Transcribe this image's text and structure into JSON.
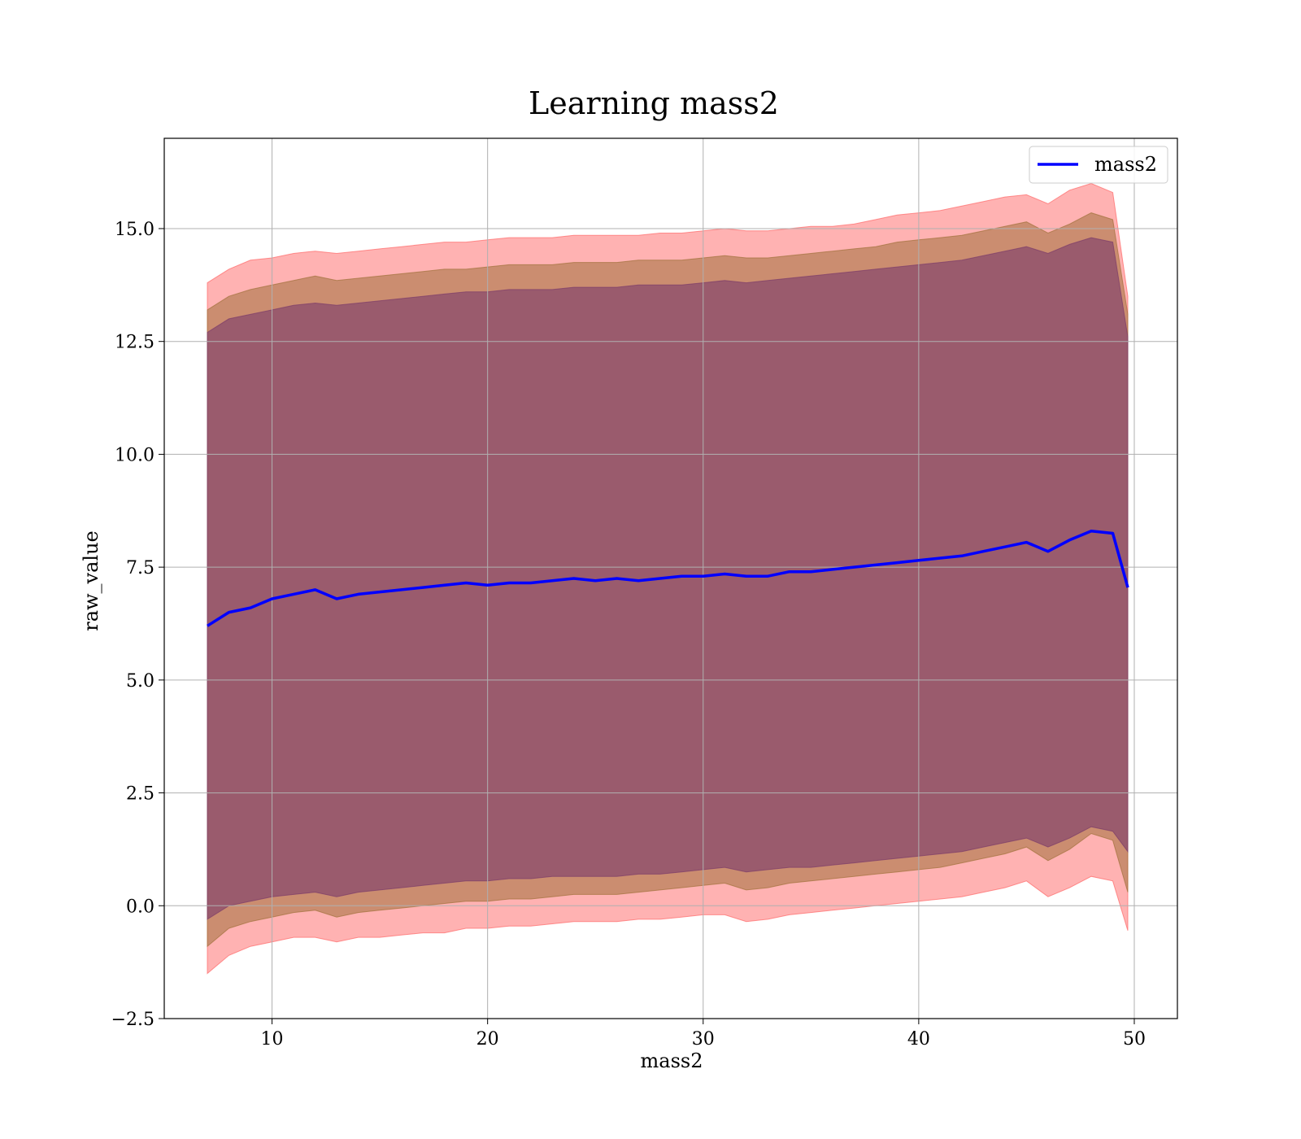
{
  "chart_data": {
    "type": "line",
    "title": "Learning mass2",
    "xlabel": "mass2",
    "ylabel": "raw_value",
    "xlim": [
      5,
      52
    ],
    "ylim": [
      -2.5,
      17
    ],
    "xticks": [
      10,
      20,
      30,
      40,
      50
    ],
    "xtick_labels": [
      "10",
      "20",
      "30",
      "40",
      "50"
    ],
    "yticks": [
      -2.5,
      0.0,
      2.5,
      5.0,
      7.5,
      10.0,
      12.5,
      15.0
    ],
    "ytick_labels": [
      "−2.5",
      "0.0",
      "2.5",
      "5.0",
      "7.5",
      "10.0",
      "12.5",
      "15.0"
    ],
    "grid": true,
    "legend_position": "top-right",
    "colors": {
      "line": "#0000ff",
      "band_outer": "#ff6666",
      "band_middle": "#a0703a",
      "band_inner": "#7a3a6a"
    },
    "series": [
      {
        "name": "mass2",
        "x": [
          7,
          8,
          9,
          10,
          11,
          12,
          13,
          14,
          15,
          16,
          17,
          18,
          19,
          20,
          21,
          22,
          23,
          24,
          25,
          26,
          27,
          28,
          29,
          30,
          31,
          32,
          33,
          34,
          35,
          36,
          37,
          38,
          39,
          40,
          41,
          42,
          43,
          44,
          45,
          46,
          47,
          48,
          49,
          49.7
        ],
        "y": [
          6.2,
          6.5,
          6.6,
          6.8,
          6.9,
          7.0,
          6.8,
          6.9,
          6.95,
          7.0,
          7.05,
          7.1,
          7.15,
          7.1,
          7.15,
          7.15,
          7.2,
          7.25,
          7.2,
          7.25,
          7.2,
          7.25,
          7.3,
          7.3,
          7.35,
          7.3,
          7.3,
          7.4,
          7.4,
          7.45,
          7.5,
          7.55,
          7.6,
          7.65,
          7.7,
          7.75,
          7.85,
          7.95,
          8.05,
          7.85,
          8.1,
          8.3,
          8.25,
          7.05
        ]
      }
    ],
    "bands": [
      {
        "x": [
          7,
          8,
          9,
          10,
          11,
          12,
          13,
          14,
          15,
          16,
          17,
          18,
          19,
          20,
          21,
          22,
          23,
          24,
          25,
          26,
          27,
          28,
          29,
          30,
          31,
          32,
          33,
          34,
          35,
          36,
          37,
          38,
          39,
          40,
          41,
          42,
          43,
          44,
          45,
          46,
          47,
          48,
          49,
          49.7
        ],
        "lower": [
          -1.5,
          -1.1,
          -0.9,
          -0.8,
          -0.7,
          -0.7,
          -0.8,
          -0.7,
          -0.7,
          -0.65,
          -0.6,
          -0.6,
          -0.5,
          -0.5,
          -0.45,
          -0.45,
          -0.4,
          -0.35,
          -0.35,
          -0.35,
          -0.3,
          -0.3,
          -0.25,
          -0.2,
          -0.2,
          -0.35,
          -0.3,
          -0.2,
          -0.15,
          -0.1,
          -0.05,
          0.0,
          0.05,
          0.1,
          0.15,
          0.2,
          0.3,
          0.4,
          0.55,
          0.2,
          0.4,
          0.65,
          0.55,
          -0.55
        ],
        "upper": [
          13.8,
          14.1,
          14.3,
          14.35,
          14.45,
          14.5,
          14.45,
          14.5,
          14.55,
          14.6,
          14.65,
          14.7,
          14.7,
          14.75,
          14.8,
          14.8,
          14.8,
          14.85,
          14.85,
          14.85,
          14.85,
          14.9,
          14.9,
          14.95,
          15.0,
          14.95,
          14.95,
          15.0,
          15.05,
          15.05,
          15.1,
          15.2,
          15.3,
          15.35,
          15.4,
          15.5,
          15.6,
          15.7,
          15.75,
          15.55,
          15.85,
          16.0,
          15.8,
          13.5
        ]
      },
      {
        "x": [
          7,
          8,
          9,
          10,
          11,
          12,
          13,
          14,
          15,
          16,
          17,
          18,
          19,
          20,
          21,
          22,
          23,
          24,
          25,
          26,
          27,
          28,
          29,
          30,
          31,
          32,
          33,
          34,
          35,
          36,
          37,
          38,
          39,
          40,
          41,
          42,
          43,
          44,
          45,
          46,
          47,
          48,
          49,
          49.7
        ],
        "lower": [
          -0.9,
          -0.5,
          -0.35,
          -0.25,
          -0.15,
          -0.1,
          -0.25,
          -0.15,
          -0.1,
          -0.05,
          0.0,
          0.05,
          0.1,
          0.1,
          0.15,
          0.15,
          0.2,
          0.25,
          0.25,
          0.25,
          0.3,
          0.35,
          0.4,
          0.45,
          0.5,
          0.35,
          0.4,
          0.5,
          0.55,
          0.6,
          0.65,
          0.7,
          0.75,
          0.8,
          0.85,
          0.95,
          1.05,
          1.15,
          1.3,
          1.0,
          1.25,
          1.6,
          1.45,
          0.3
        ],
        "upper": [
          13.2,
          13.5,
          13.65,
          13.75,
          13.85,
          13.95,
          13.85,
          13.9,
          13.95,
          14.0,
          14.05,
          14.1,
          14.1,
          14.15,
          14.2,
          14.2,
          14.2,
          14.25,
          14.25,
          14.25,
          14.3,
          14.3,
          14.3,
          14.35,
          14.4,
          14.35,
          14.35,
          14.4,
          14.45,
          14.5,
          14.55,
          14.6,
          14.7,
          14.75,
          14.8,
          14.85,
          14.95,
          15.05,
          15.15,
          14.9,
          15.1,
          15.35,
          15.2,
          13.1
        ]
      },
      {
        "x": [
          7,
          8,
          9,
          10,
          11,
          12,
          13,
          14,
          15,
          16,
          17,
          18,
          19,
          20,
          21,
          22,
          23,
          24,
          25,
          26,
          27,
          28,
          29,
          30,
          31,
          32,
          33,
          34,
          35,
          36,
          37,
          38,
          39,
          40,
          41,
          42,
          43,
          44,
          45,
          46,
          47,
          48,
          49,
          49.7
        ],
        "lower": [
          -0.3,
          0.0,
          0.1,
          0.2,
          0.25,
          0.3,
          0.2,
          0.3,
          0.35,
          0.4,
          0.45,
          0.5,
          0.55,
          0.55,
          0.6,
          0.6,
          0.65,
          0.65,
          0.65,
          0.65,
          0.7,
          0.7,
          0.75,
          0.8,
          0.85,
          0.75,
          0.8,
          0.85,
          0.85,
          0.9,
          0.95,
          1.0,
          1.05,
          1.1,
          1.15,
          1.2,
          1.3,
          1.4,
          1.5,
          1.3,
          1.5,
          1.75,
          1.65,
          1.2
        ],
        "upper": [
          12.7,
          13.0,
          13.1,
          13.2,
          13.3,
          13.35,
          13.3,
          13.35,
          13.4,
          13.45,
          13.5,
          13.55,
          13.6,
          13.6,
          13.65,
          13.65,
          13.65,
          13.7,
          13.7,
          13.7,
          13.75,
          13.75,
          13.75,
          13.8,
          13.85,
          13.8,
          13.85,
          13.9,
          13.95,
          14.0,
          14.05,
          14.1,
          14.15,
          14.2,
          14.25,
          14.3,
          14.4,
          14.5,
          14.6,
          14.45,
          14.65,
          14.8,
          14.7,
          12.6
        ]
      }
    ]
  }
}
